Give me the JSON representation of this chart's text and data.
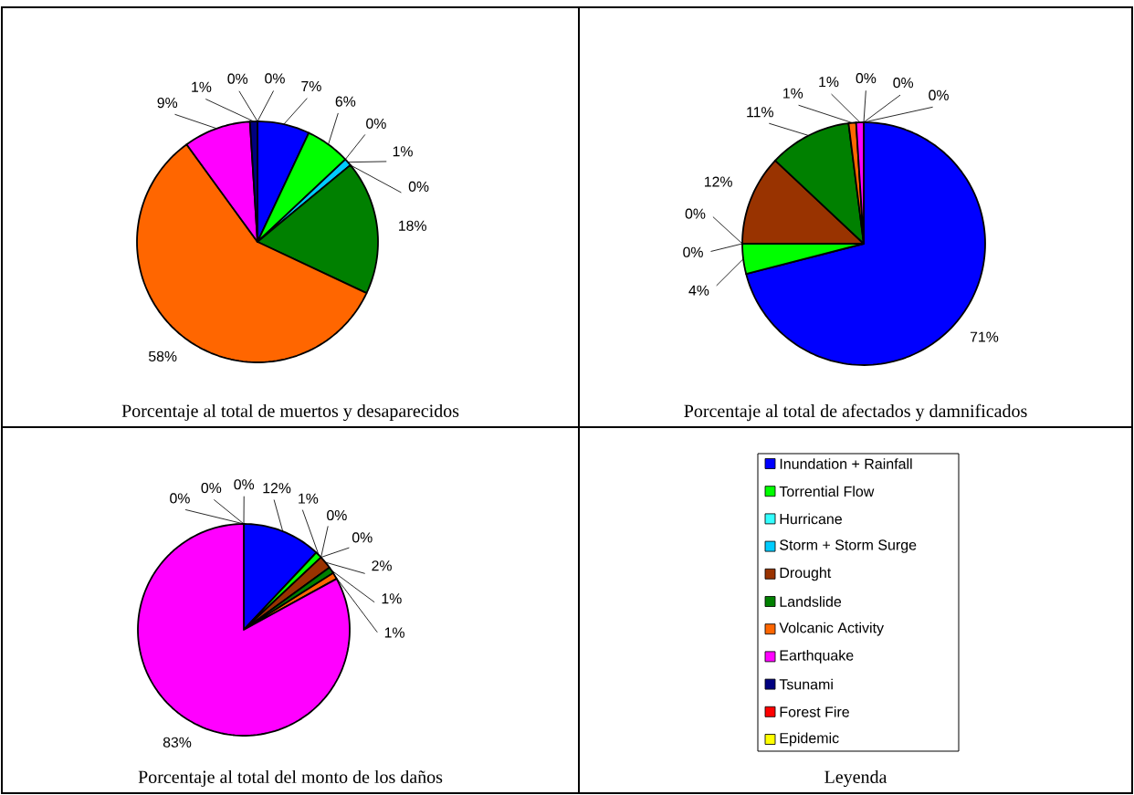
{
  "chart_data": [
    {
      "type": "pie",
      "title": "Porcentaje al total de muertos y desaparecidos",
      "categories": [
        null,
        null,
        null,
        null,
        null,
        null,
        null,
        null,
        null,
        null,
        null
      ],
      "colors": [
        "#0000ff",
        "#00ff00",
        "#33ffff",
        "#00ccff",
        "#993300",
        "#008000",
        "#ff6600",
        "#ff00ff",
        "#000080",
        "#ff0000",
        "#ffff00"
      ],
      "values": [
        7,
        6,
        0,
        1,
        0,
        18,
        58,
        9,
        1,
        0,
        0
      ],
      "value_labels": [
        "7%",
        "6%",
        "0%",
        "1%",
        "0%",
        "18%",
        "58%",
        "9%",
        "1%",
        "0%",
        "0%"
      ]
    },
    {
      "type": "pie",
      "title": "Porcentaje al total de afectados y damnificados",
      "categories": [
        null,
        null,
        null,
        null,
        null,
        null,
        null,
        null,
        null,
        null,
        null
      ],
      "colors": [
        "#0000ff",
        "#00ff00",
        "#33ffff",
        "#00ccff",
        "#993300",
        "#008000",
        "#ff6600",
        "#ff00ff",
        "#000080",
        "#ff0000",
        "#ffff00"
      ],
      "values": [
        71,
        4,
        0,
        0,
        12,
        11,
        1,
        1,
        0,
        0,
        0
      ],
      "value_labels": [
        "71%",
        "4%",
        "0%",
        "0%",
        "12%",
        "11%",
        "1%",
        "1%",
        "0%",
        "0%",
        "0%"
      ]
    },
    {
      "type": "pie",
      "title": "Porcentaje al total del monto de los daños",
      "legend": "right",
      "legend_title": "Leyenda",
      "categories": [
        "Inundation + Rainfall",
        "Torrential Flow",
        "Hurricane",
        "Storm + Storm Surge",
        "Drought",
        "Landslide",
        "Volcanic Activity",
        "Earthquake",
        "Tsunami",
        "Forest Fire",
        "Epidemic"
      ],
      "colors": [
        "#0000ff",
        "#00ff00",
        "#33ffff",
        "#00ccff",
        "#993300",
        "#008000",
        "#ff6600",
        "#ff00ff",
        "#000080",
        "#ff0000",
        "#ffff00"
      ],
      "values": [
        12,
        1,
        0,
        0,
        2,
        1,
        1,
        83,
        0,
        0,
        0
      ],
      "value_labels": [
        "12%",
        "1%",
        "0%",
        "0%",
        "2%",
        "1%",
        "1%",
        "83%",
        "0%",
        "0%",
        "0%"
      ]
    }
  ]
}
